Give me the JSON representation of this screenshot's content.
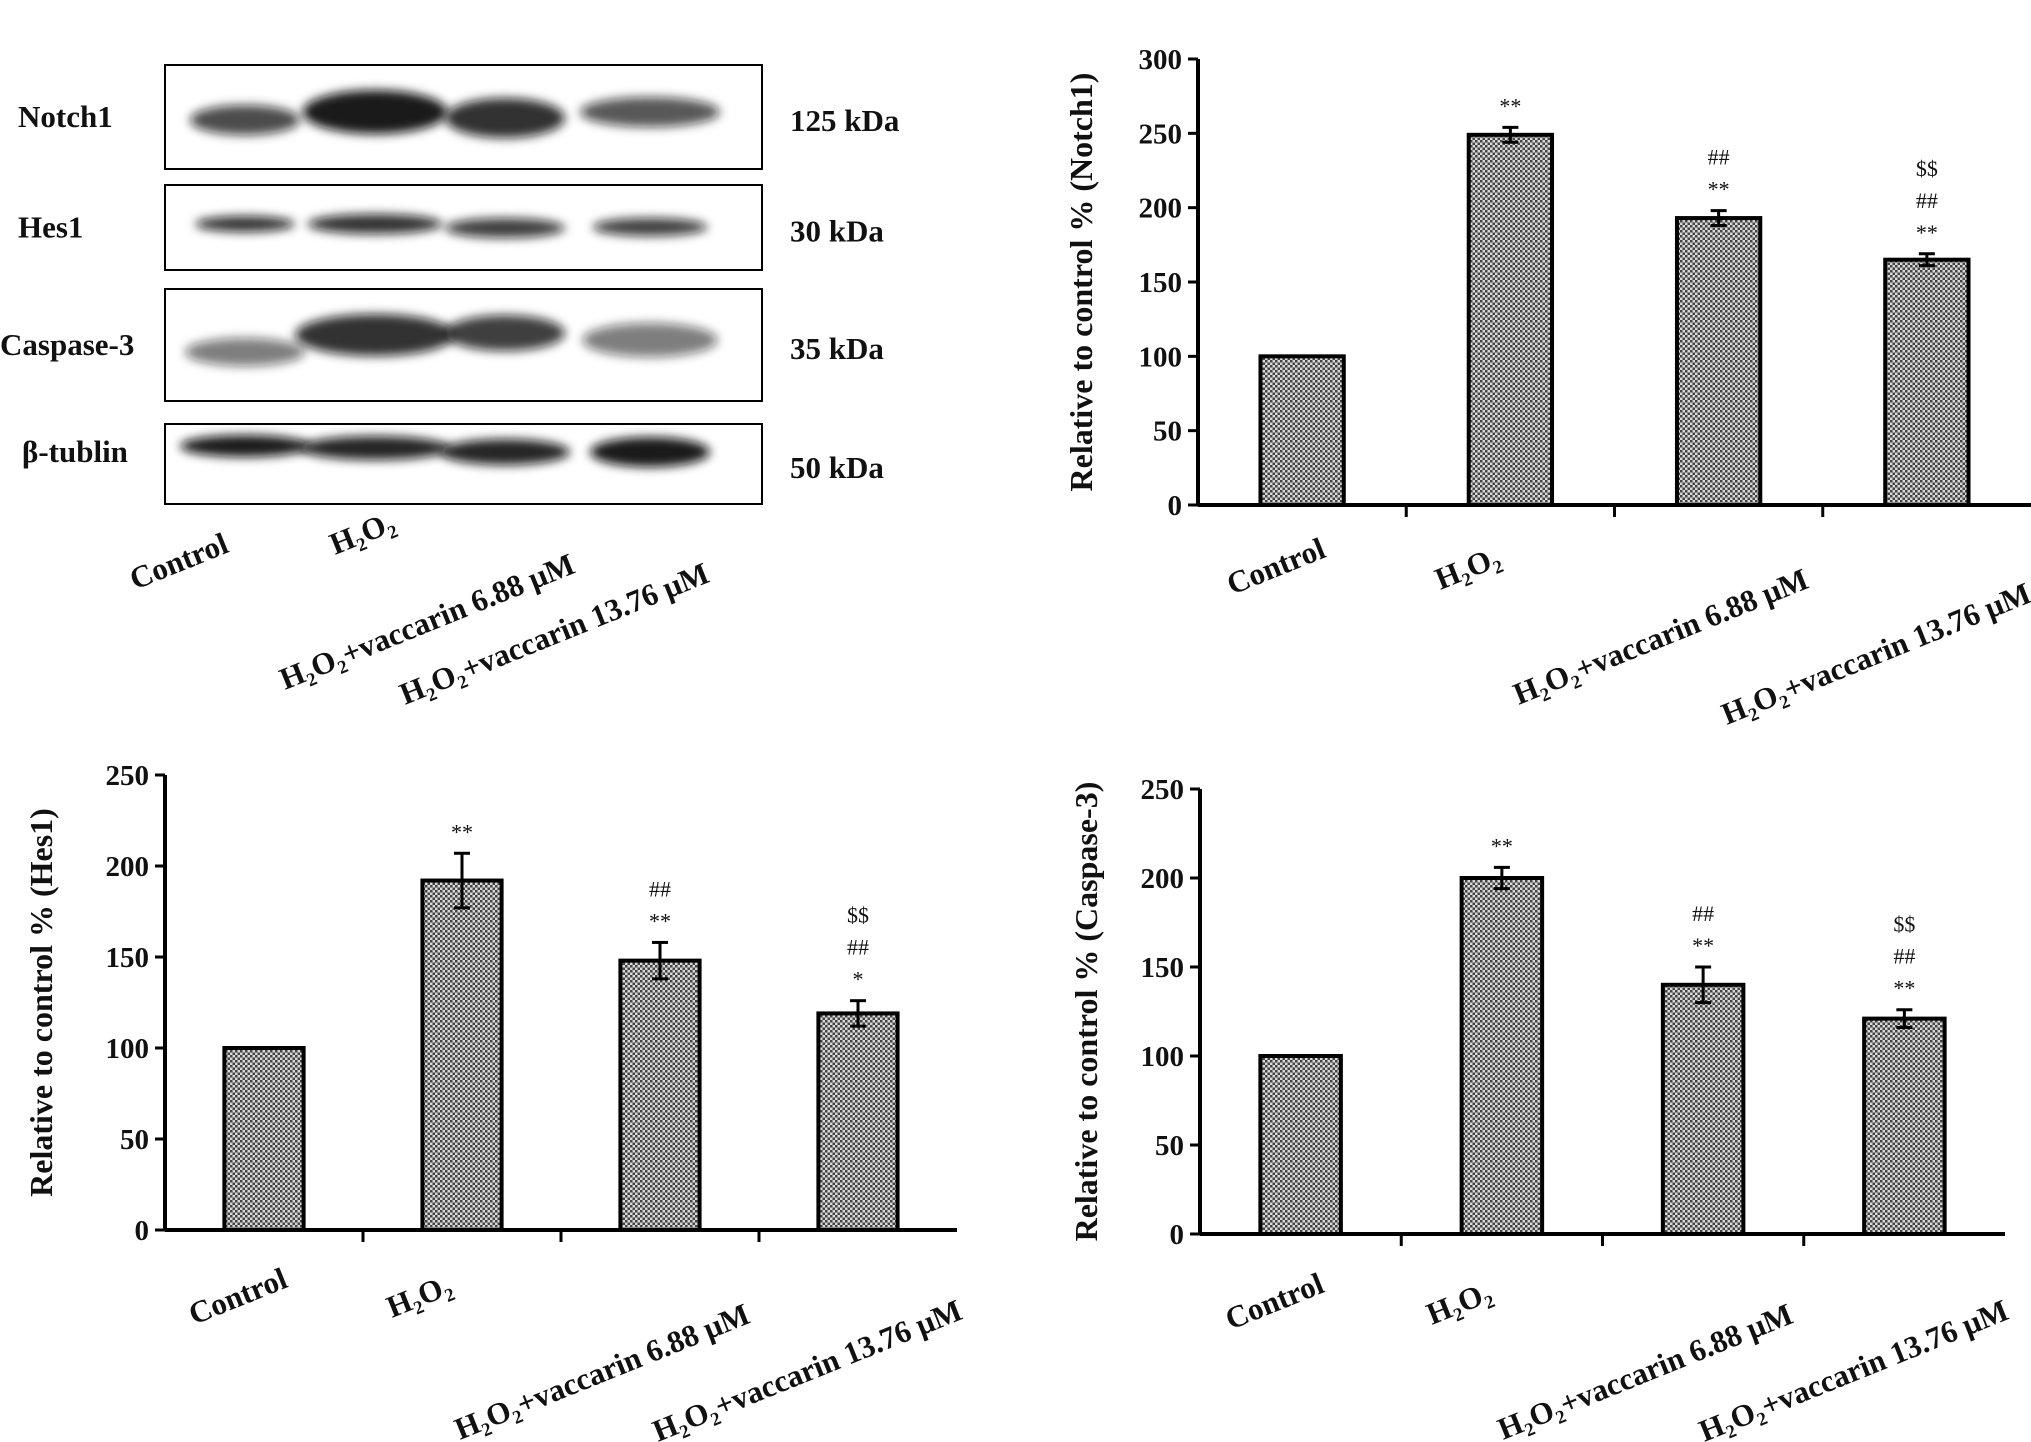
{
  "blot": {
    "proteins": [
      {
        "name": "Notch1",
        "size": "125 kDa"
      },
      {
        "name": "Hes1",
        "size": "30 kDa"
      },
      {
        "name": "Caspase-3",
        "size": "35 kDa"
      },
      {
        "name": "β-tublin",
        "size": "50 kDa"
      }
    ],
    "lanes": [
      "Control",
      "H₂O₂",
      "H₂O₂+vaccarin 6.88 μM",
      "H₂O₂+vaccarin 13.76 μM"
    ]
  },
  "colors": {
    "bar_fill": "#9a9a9a",
    "axis": "#000000"
  },
  "chart_data": [
    {
      "type": "bar",
      "title": "",
      "ylabel": "Relative to control % (Notch1)",
      "xlabel": "",
      "categories": [
        "Control",
        "H₂O₂",
        "H₂O₂+vaccarin 6.88 μM",
        "H₂O₂+vaccarin 13.76 μM"
      ],
      "values": [
        100,
        249,
        193,
        165
      ],
      "errors": [
        0,
        5,
        5,
        4
      ],
      "annotations": [
        [],
        [
          "**"
        ],
        [
          "##",
          "**"
        ],
        [
          "$$",
          "##",
          "**"
        ]
      ],
      "ylim": [
        0,
        300
      ],
      "yticks": [
        "0",
        "50",
        "100",
        "150",
        "200",
        "250",
        "300"
      ]
    },
    {
      "type": "bar",
      "title": "",
      "ylabel": "Relative to control % (Hes1)",
      "xlabel": "",
      "categories": [
        "Control",
        "H₂O₂",
        "H₂O₂+vaccarin 6.88 μM",
        "H₂O₂+vaccarin 13.76 μM"
      ],
      "values": [
        100,
        192,
        148,
        119
      ],
      "errors": [
        0,
        15,
        10,
        7
      ],
      "annotations": [
        [],
        [
          "**"
        ],
        [
          "##",
          "**"
        ],
        [
          "$$",
          "##",
          "*"
        ]
      ],
      "ylim": [
        0,
        250
      ],
      "yticks": [
        "0",
        "50",
        "100",
        "150",
        "200",
        "250"
      ]
    },
    {
      "type": "bar",
      "title": "",
      "ylabel": "Relative to control % (Caspase-3)",
      "xlabel": "",
      "categories": [
        "Control",
        "H₂O₂",
        "H₂O₂+vaccarin 6.88 μM",
        "H₂O₂+vaccarin 13.76 μM"
      ],
      "values": [
        100,
        200,
        140,
        121
      ],
      "errors": [
        0,
        6,
        10,
        5
      ],
      "annotations": [
        [],
        [
          "**"
        ],
        [
          "##",
          "**"
        ],
        [
          "$$",
          "##",
          "**"
        ]
      ],
      "ylim": [
        0,
        250
      ],
      "yticks": [
        "0",
        "50",
        "100",
        "150",
        "200",
        "250"
      ]
    }
  ]
}
